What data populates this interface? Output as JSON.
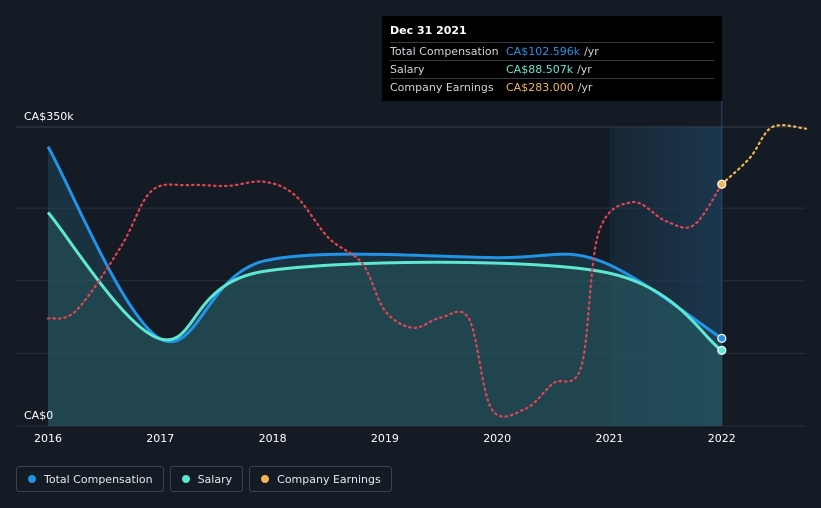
{
  "colors": {
    "background": "#151b24",
    "grid": "#2a313b",
    "total_compensation": "#2294e8",
    "salary": "#5ee8d4",
    "company_earnings_past": "#e04650",
    "company_earnings_forecast": "#f2b556"
  },
  "tooltip": {
    "date": "Dec 31 2021",
    "rows": [
      {
        "label": "Total Compensation",
        "value": "CA$102.596k",
        "unit": "/yr"
      },
      {
        "label": "Salary",
        "value": "CA$88.507k",
        "unit": "/yr"
      },
      {
        "label": "Company Earnings",
        "value": "CA$283.000",
        "unit": "/yr"
      }
    ]
  },
  "legend": [
    {
      "label": "Total Compensation",
      "color": "#2294e8"
    },
    {
      "label": "Salary",
      "color": "#5ee8d4"
    },
    {
      "label": "Company Earnings",
      "color": "#f2b556"
    }
  ],
  "chart_data": {
    "type": "line",
    "xlim": [
      2016,
      2022.75
    ],
    "ylim": [
      0,
      350
    ],
    "y_unit": "CA$k",
    "y_ticks": [
      {
        "value": 350,
        "label": "CA$350k"
      },
      {
        "value": 0,
        "label": "CA$0"
      }
    ],
    "x_ticks": [
      "2016",
      "2017",
      "2018",
      "2019",
      "2020",
      "2021",
      "2022"
    ],
    "x_tick_values": [
      2016,
      2017,
      2018,
      2019,
      2020,
      2021,
      2022
    ],
    "highlight_range": [
      2021,
      2022
    ],
    "series": [
      {
        "name": "Total Compensation",
        "color": "#2294e8",
        "area": true,
        "end_marker": true,
        "points": [
          [
            2016,
            327
          ],
          [
            2017,
            102
          ],
          [
            2017.92,
            193
          ],
          [
            2020,
            197
          ],
          [
            2020.92,
            193
          ],
          [
            2022,
            102.6
          ]
        ]
      },
      {
        "name": "Salary",
        "color": "#5ee8d4",
        "area": true,
        "end_marker": true,
        "points": [
          [
            2016,
            250
          ],
          [
            2017,
            102
          ],
          [
            2017.92,
            181
          ],
          [
            2020.92,
            181
          ],
          [
            2022,
            88.5
          ]
        ]
      },
      {
        "name": "Company Earnings",
        "color": "#e04650",
        "forecast_color": "#f2b556",
        "dotted": true,
        "forecast_from": 2022,
        "end_marker_at": 2022,
        "points": [
          [
            2016,
            126
          ],
          [
            2016.25,
            135
          ],
          [
            2016.65,
            210
          ],
          [
            2016.92,
            275
          ],
          [
            2017.25,
            282
          ],
          [
            2017.6,
            281
          ],
          [
            2017.92,
            286
          ],
          [
            2018.2,
            270
          ],
          [
            2018.5,
            220
          ],
          [
            2018.8,
            190
          ],
          [
            2019.0,
            135
          ],
          [
            2019.25,
            115
          ],
          [
            2019.5,
            127
          ],
          [
            2019.75,
            125
          ],
          [
            2019.95,
            20
          ],
          [
            2020.25,
            20
          ],
          [
            2020.5,
            50
          ],
          [
            2020.75,
            70
          ],
          [
            2020.9,
            225
          ],
          [
            2021.2,
            262
          ],
          [
            2021.5,
            240
          ],
          [
            2021.75,
            235
          ],
          [
            2022,
            283
          ],
          [
            2022.25,
            314
          ],
          [
            2022.45,
            350
          ],
          [
            2022.75,
            348
          ]
        ]
      }
    ]
  }
}
